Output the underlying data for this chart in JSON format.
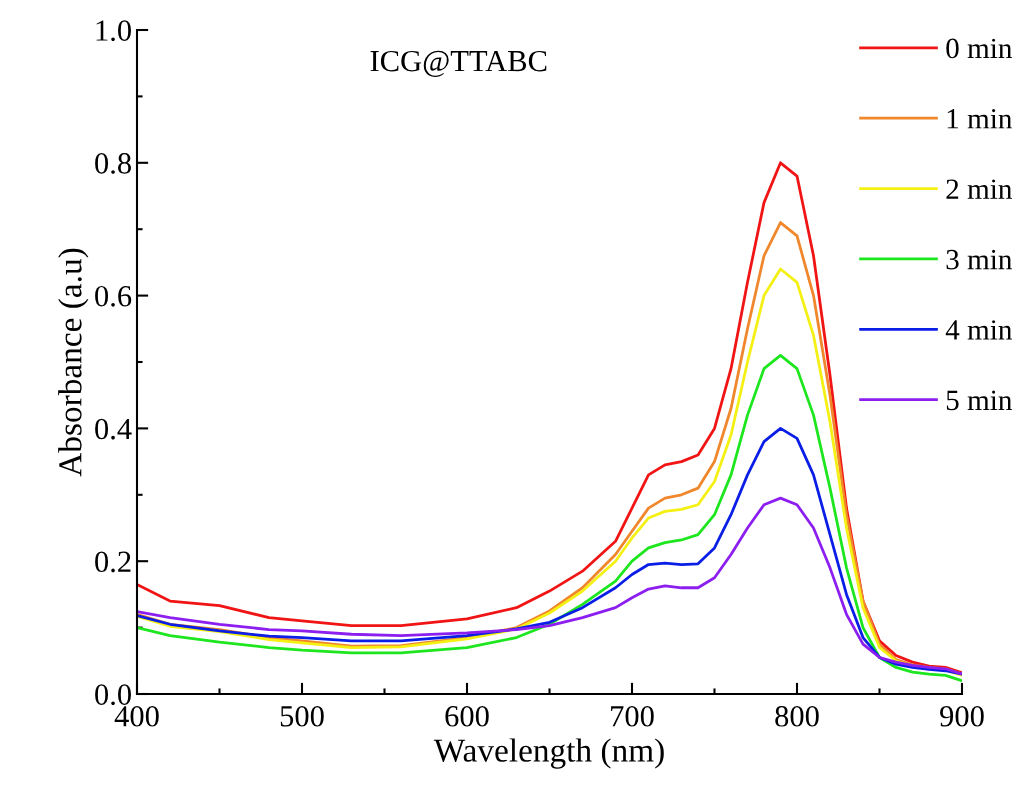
{
  "chart_data": {
    "type": "line",
    "title": "ICG@TTABC",
    "xlabel": "Wavelength (nm)",
    "ylabel": "Absorbance (a.u)",
    "x": [
      400,
      420,
      450,
      480,
      500,
      530,
      560,
      600,
      630,
      650,
      670,
      690,
      700,
      710,
      720,
      730,
      740,
      750,
      760,
      770,
      780,
      790,
      800,
      810,
      820,
      830,
      840,
      850,
      860,
      870,
      880,
      890,
      900
    ],
    "xlim": [
      400,
      900
    ],
    "xticks": [
      400,
      500,
      600,
      700,
      800,
      900
    ],
    "ylim": [
      0,
      1
    ],
    "yticks": [
      {
        "value": 0,
        "label": "0.0"
      },
      0.2,
      0.4,
      0.6,
      0.8,
      {
        "value": 1,
        "label": "1.0"
      }
    ],
    "grid": false,
    "legend": "right",
    "marker": "none",
    "line_style": "solid",
    "series": [
      {
        "name": "0 min",
        "color": "#f01414",
        "values": [
          0.165,
          0.14,
          0.133,
          0.115,
          0.11,
          0.103,
          0.103,
          0.113,
          0.13,
          0.155,
          0.185,
          0.23,
          0.28,
          0.33,
          0.345,
          0.35,
          0.36,
          0.4,
          0.49,
          0.62,
          0.74,
          0.8,
          0.78,
          0.66,
          0.48,
          0.28,
          0.14,
          0.08,
          0.058,
          0.048,
          0.042,
          0.04,
          0.032
        ]
      },
      {
        "name": "1 min",
        "color": "#f0872d",
        "values": [
          0.12,
          0.105,
          0.097,
          0.085,
          0.08,
          0.072,
          0.073,
          0.085,
          0.1,
          0.125,
          0.16,
          0.21,
          0.245,
          0.28,
          0.295,
          0.3,
          0.31,
          0.35,
          0.43,
          0.55,
          0.66,
          0.71,
          0.69,
          0.6,
          0.45,
          0.27,
          0.14,
          0.075,
          0.052,
          0.044,
          0.04,
          0.038,
          0.03
        ]
      },
      {
        "name": "2 min",
        "color": "#f5f014",
        "values": [
          0.117,
          0.102,
          0.094,
          0.082,
          0.077,
          0.07,
          0.071,
          0.083,
          0.098,
          0.122,
          0.155,
          0.2,
          0.235,
          0.265,
          0.275,
          0.278,
          0.285,
          0.32,
          0.39,
          0.5,
          0.6,
          0.64,
          0.62,
          0.54,
          0.41,
          0.25,
          0.13,
          0.07,
          0.05,
          0.042,
          0.038,
          0.036,
          0.028
        ]
      },
      {
        "name": "3 min",
        "color": "#1ee61e",
        "values": [
          0.1,
          0.088,
          0.078,
          0.07,
          0.066,
          0.062,
          0.062,
          0.07,
          0.085,
          0.105,
          0.135,
          0.17,
          0.2,
          0.22,
          0.228,
          0.232,
          0.24,
          0.27,
          0.33,
          0.42,
          0.49,
          0.51,
          0.49,
          0.42,
          0.31,
          0.19,
          0.1,
          0.055,
          0.04,
          0.033,
          0.03,
          0.028,
          0.02
        ]
      },
      {
        "name": "4 min",
        "color": "#0a1ee6",
        "values": [
          0.118,
          0.105,
          0.095,
          0.087,
          0.085,
          0.08,
          0.08,
          0.088,
          0.098,
          0.108,
          0.13,
          0.16,
          0.18,
          0.195,
          0.197,
          0.195,
          0.196,
          0.22,
          0.27,
          0.33,
          0.38,
          0.4,
          0.385,
          0.33,
          0.24,
          0.15,
          0.085,
          0.055,
          0.045,
          0.04,
          0.037,
          0.035,
          0.03
        ]
      },
      {
        "name": "5 min",
        "color": "#8c1ef0",
        "values": [
          0.124,
          0.115,
          0.105,
          0.097,
          0.095,
          0.09,
          0.088,
          0.092,
          0.097,
          0.103,
          0.115,
          0.13,
          0.145,
          0.158,
          0.163,
          0.16,
          0.16,
          0.175,
          0.21,
          0.25,
          0.285,
          0.295,
          0.285,
          0.25,
          0.19,
          0.12,
          0.075,
          0.055,
          0.048,
          0.043,
          0.04,
          0.038,
          0.03
        ]
      }
    ]
  }
}
